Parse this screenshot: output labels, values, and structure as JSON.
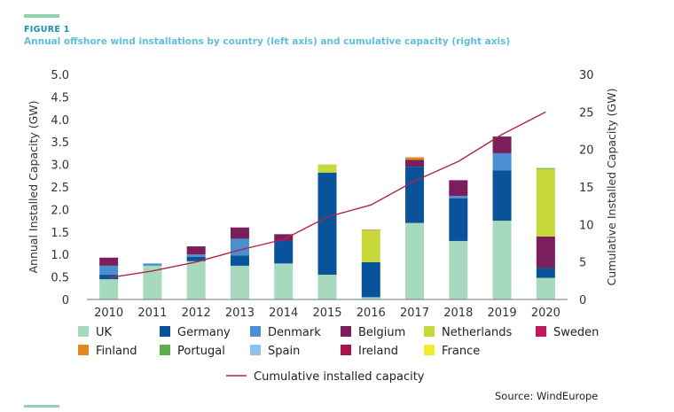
{
  "header": {
    "figure_label": "FIGURE 1",
    "title": "Annual offshore wind installations by country (left axis) and cumulative capacity (right axis)"
  },
  "footer": {
    "source": "Source: WindEurope"
  },
  "colors": {
    "UK": "#a6d9bd",
    "Germany": "#08539a",
    "Denmark": "#4a8fcf",
    "Belgium": "#7a1f5c",
    "Netherlands": "#c7d83b",
    "Sweden": "#c2185b",
    "Finland": "#e08a1e",
    "Portugal": "#5aae4e",
    "Spain": "#8ec2ea",
    "Ireland": "#a8124f",
    "France": "#f2ec2e",
    "line": "#b2214e",
    "axis": "#555555"
  },
  "chart_data": {
    "type": "bar",
    "stacked": true,
    "categories": [
      "2010",
      "2011",
      "2012",
      "2013",
      "2014",
      "2015",
      "2016",
      "2017",
      "2018",
      "2019",
      "2020"
    ],
    "series": [
      {
        "name": "UK",
        "values": [
          0.45,
          0.75,
          0.85,
          0.75,
          0.8,
          0.55,
          0.05,
          1.7,
          1.3,
          1.75,
          0.48
        ]
      },
      {
        "name": "Germany",
        "values": [
          0.1,
          0.0,
          0.1,
          0.23,
          0.5,
          2.27,
          0.78,
          1.25,
          0.95,
          1.12,
          0.22
        ]
      },
      {
        "name": "Denmark",
        "values": [
          0.2,
          0.05,
          0.05,
          0.37,
          0.0,
          0.0,
          0.0,
          0.0,
          0.05,
          0.38,
          0.0
        ]
      },
      {
        "name": "Belgium",
        "values": [
          0.18,
          0.0,
          0.18,
          0.25,
          0.15,
          0.0,
          0.0,
          0.15,
          0.35,
          0.37,
          0.7
        ]
      },
      {
        "name": "Netherlands",
        "values": [
          0.0,
          0.0,
          0.0,
          0.0,
          0.0,
          0.18,
          0.7,
          0.0,
          0.0,
          0.0,
          1.5
        ]
      },
      {
        "name": "Sweden",
        "values": [
          0.0,
          0.0,
          0.0,
          0.0,
          0.0,
          0.0,
          0.0,
          0.0,
          0.0,
          0.0,
          0.0
        ]
      },
      {
        "name": "Finland",
        "values": [
          0.0,
          0.0,
          0.0,
          0.0,
          0.0,
          0.0,
          0.02,
          0.06,
          0.0,
          0.0,
          0.0
        ]
      },
      {
        "name": "Portugal",
        "values": [
          0.0,
          0.0,
          0.0,
          0.0,
          0.0,
          0.0,
          0.0,
          0.0,
          0.0,
          0.0,
          0.02
        ]
      },
      {
        "name": "Spain",
        "values": [
          0.0,
          0.0,
          0.0,
          0.0,
          0.0,
          0.0,
          0.0,
          0.0,
          0.0,
          0.0,
          0.0
        ]
      },
      {
        "name": "Ireland",
        "values": [
          0.0,
          0.0,
          0.0,
          0.0,
          0.0,
          0.0,
          0.0,
          0.0,
          0.0,
          0.0,
          0.0
        ]
      },
      {
        "name": "France",
        "values": [
          0.0,
          0.0,
          0.0,
          0.0,
          0.0,
          0.0,
          0.0,
          0.0,
          0.0,
          0.0,
          0.0
        ]
      }
    ],
    "line": {
      "name": "Cumulative installed capacity",
      "axis": "right",
      "values": [
        2.9,
        3.8,
        5.0,
        6.6,
        8.0,
        11.0,
        12.6,
        15.8,
        18.4,
        22.0,
        25.0
      ]
    },
    "ylabel": "Annual Installed Capacity (GW)",
    "ylabel_right": "Cumulative Installed Capacity (GW)",
    "ylim": [
      0,
      5.0
    ],
    "ylim_right": [
      0,
      30
    ],
    "yticks": [
      "0",
      "0.5",
      "1.0",
      "1.5",
      "2.0",
      "2.5",
      "3.0",
      "3.5",
      "4.0",
      "4.5",
      "5.0"
    ],
    "yticks_right": [
      "0",
      "5",
      "10",
      "15",
      "20",
      "25",
      "30"
    ],
    "grid": false,
    "legend": {
      "placement": "bottom",
      "entries": [
        "UK",
        "Germany",
        "Denmark",
        "Belgium",
        "Netherlands",
        "Sweden",
        "Finland",
        "Portugal",
        "Spain",
        "Ireland",
        "France"
      ],
      "line_entry": "Cumulative installed capacity"
    }
  }
}
